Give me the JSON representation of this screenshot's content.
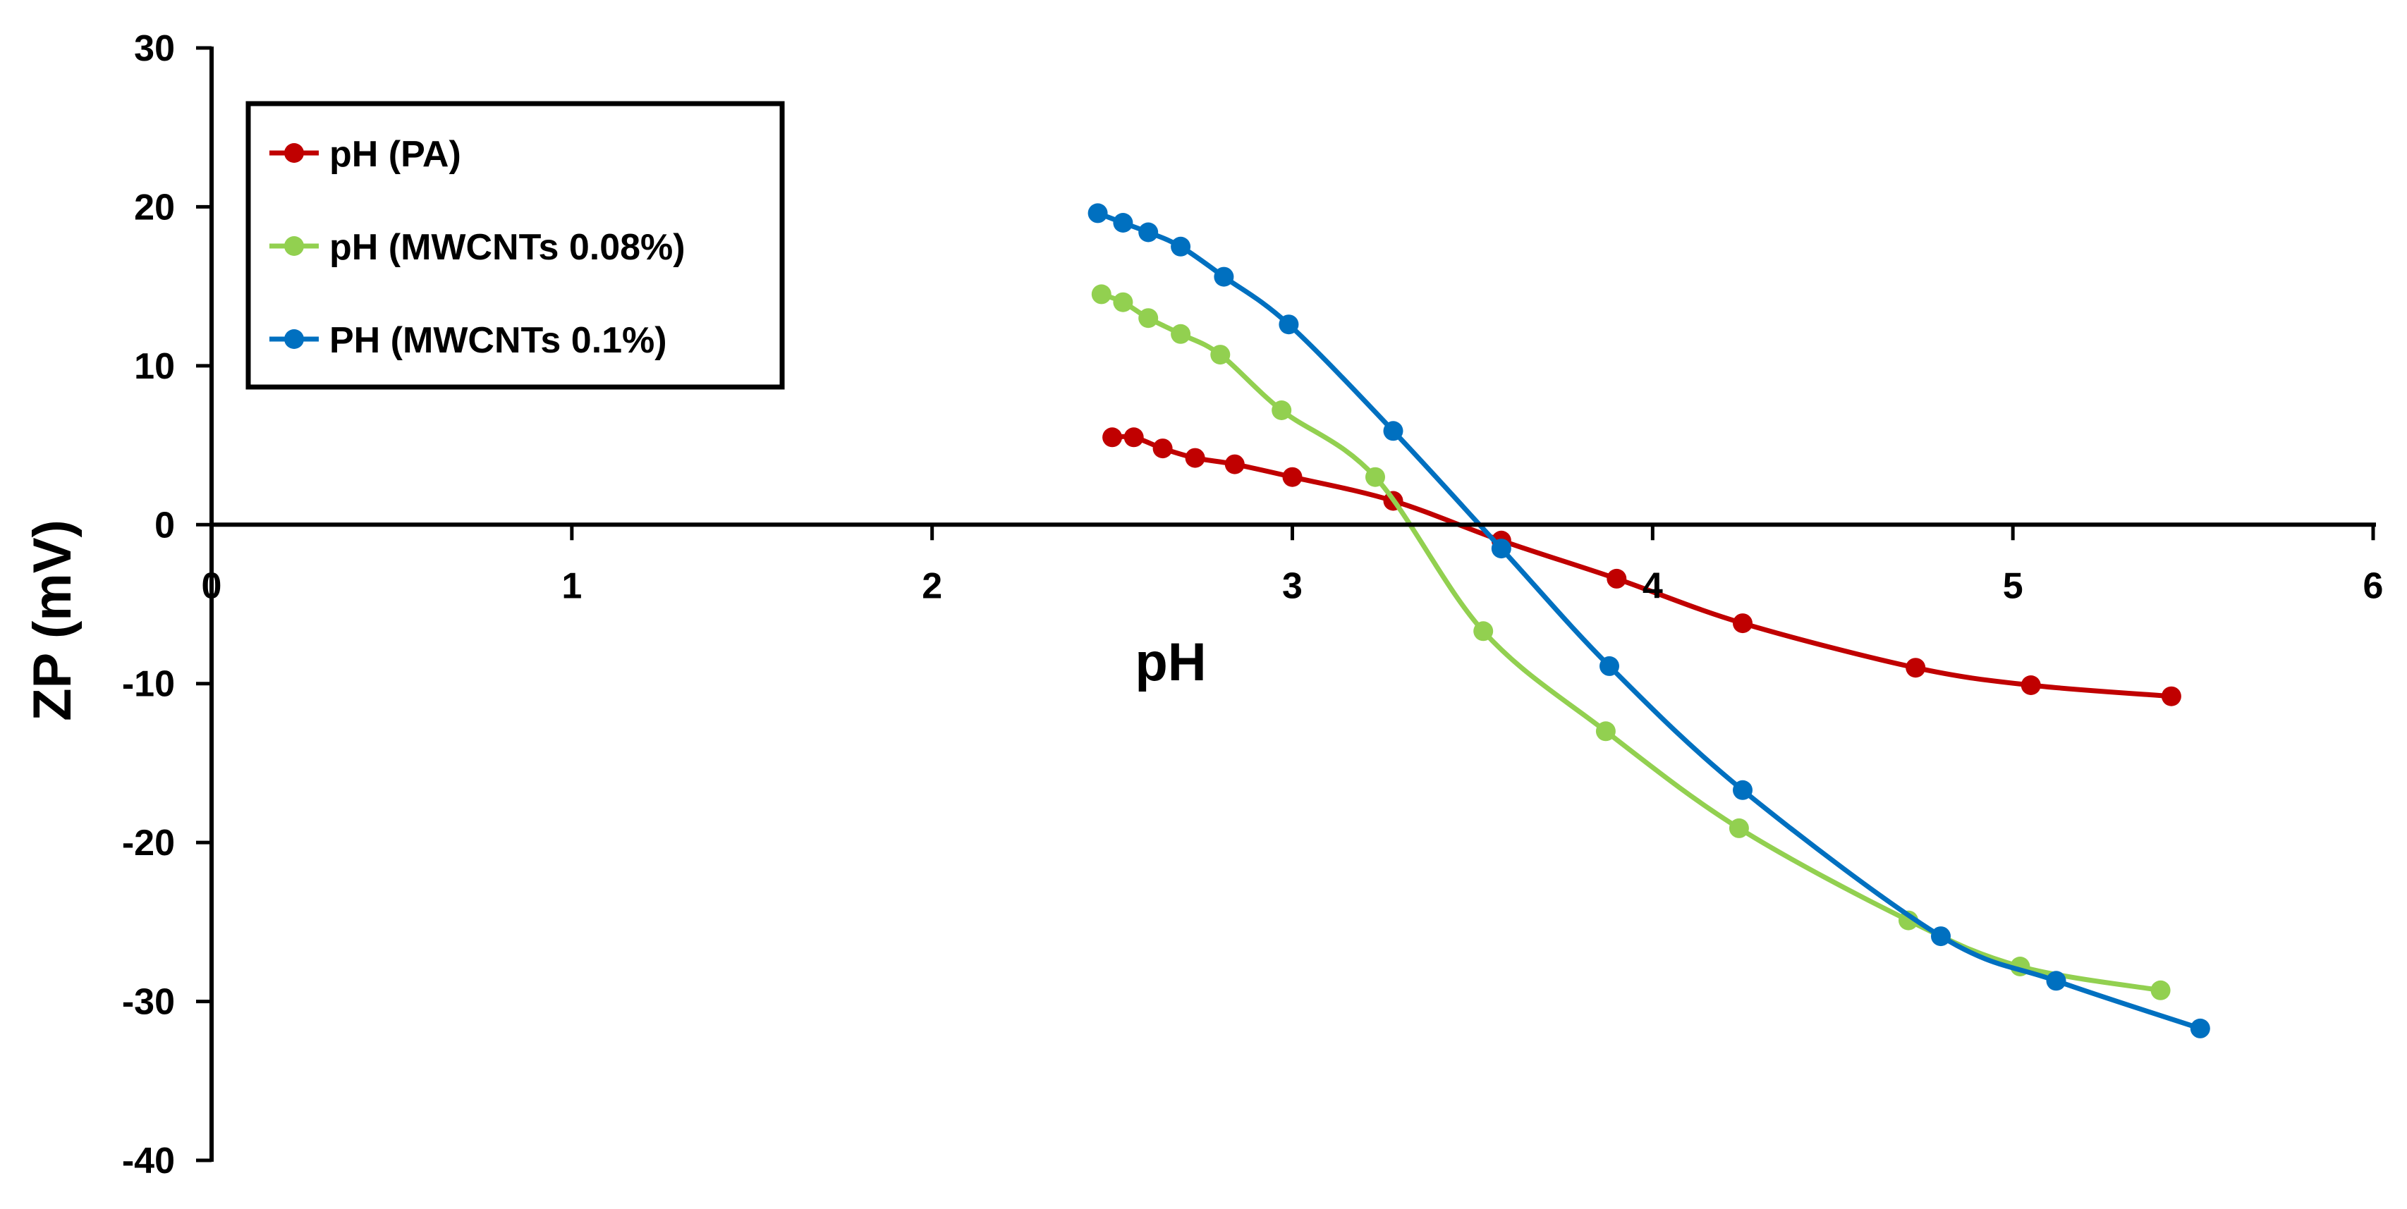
{
  "chart_data": {
    "type": "line",
    "title": "",
    "xlabel": "pH",
    "ylabel": "ZP (mV)",
    "xlim": [
      0,
      6
    ],
    "ylim": [
      -40,
      30
    ],
    "xticks": [
      "0",
      "1",
      "2",
      "3",
      "4",
      "5",
      "6"
    ],
    "yticks": [
      "30",
      "20",
      "10",
      "0",
      "-10",
      "-20",
      "-30",
      "-40"
    ],
    "grid": false,
    "smooth": true,
    "legend_position": "top-left",
    "series": [
      {
        "name": "pH (PA)",
        "color": "#C00000",
        "x": [
          2.5,
          2.56,
          2.64,
          2.73,
          2.84,
          3.0,
          3.28,
          3.58,
          3.9,
          4.25,
          4.73,
          5.05,
          5.44
        ],
        "y": [
          5.5,
          5.5,
          4.8,
          4.2,
          3.8,
          3.0,
          1.5,
          -1.0,
          -3.4,
          -6.2,
          -9.0,
          -10.1,
          -10.8
        ]
      },
      {
        "name": "pH (MWCNTs 0.08%)",
        "color": "#92D050",
        "x": [
          2.47,
          2.53,
          2.6,
          2.69,
          2.8,
          2.97,
          3.23,
          3.53,
          3.87,
          4.24,
          4.71,
          5.02,
          5.41
        ],
        "y": [
          14.5,
          14.0,
          13.0,
          12.0,
          10.7,
          7.2,
          3.0,
          -6.7,
          -13.0,
          -19.1,
          -24.9,
          -27.8,
          -29.3
        ]
      },
      {
        "name": "PH (MWCNTs 0.1%)",
        "color": "#0070C0",
        "x": [
          2.46,
          2.53,
          2.6,
          2.69,
          2.81,
          2.99,
          3.28,
          3.58,
          3.88,
          4.25,
          4.8,
          5.12,
          5.52
        ],
        "y": [
          19.6,
          19.0,
          18.4,
          17.5,
          15.6,
          12.6,
          5.9,
          -1.5,
          -8.9,
          -16.7,
          -25.9,
          -28.7,
          -31.7
        ]
      }
    ]
  }
}
